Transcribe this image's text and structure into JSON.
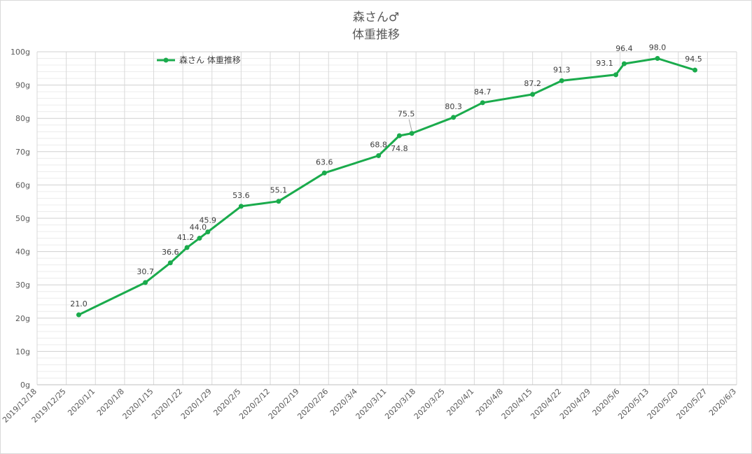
{
  "chart_data": {
    "type": "line",
    "title": "森さん♂",
    "subtitle": "体重推移",
    "color": "#1aab4c",
    "legend": {
      "label": "森さん 体重推移",
      "placement": "top-left"
    },
    "grid": true,
    "ylim": [
      0,
      100
    ],
    "y_tick_labels": [
      "0g",
      "10g",
      "20g",
      "30g",
      "40g",
      "50g",
      "60g",
      "70g",
      "80g",
      "90g",
      "100g"
    ],
    "x_tick_labels": [
      "2019/12/18",
      "2019/12/25",
      "2020/1/1",
      "2020/1/8",
      "2020/1/15",
      "2020/1/22",
      "2020/1/29",
      "2020/2/5",
      "2020/2/12",
      "2020/2/19",
      "2020/2/26",
      "2020/3/4",
      "2020/3/11",
      "2020/3/18",
      "2020/3/25",
      "2020/4/1",
      "2020/4/8",
      "2020/4/15",
      "2020/4/22",
      "2020/4/29",
      "2020/5/6",
      "2020/5/13",
      "2020/5/20",
      "2020/5/27",
      "2020/6/3"
    ],
    "xlim": [
      "2019/12/18",
      "2020/6/3"
    ],
    "series": [
      {
        "name": "森さん 体重推移",
        "points": [
          {
            "x": "2019/12/28",
            "y": 21.0,
            "label": "21.0"
          },
          {
            "x": "2020/1/13",
            "y": 30.7,
            "label": "30.7"
          },
          {
            "x": "2020/1/19",
            "y": 36.6,
            "label": "36.6"
          },
          {
            "x": "2020/1/23",
            "y": 41.2,
            "label": "41.2"
          },
          {
            "x": "2020/1/26",
            "y": 44.0,
            "label": "44.0"
          },
          {
            "x": "2020/1/28",
            "y": 45.9,
            "label": "45.9"
          },
          {
            "x": "2020/2/5",
            "y": 53.6,
            "label": "53.6"
          },
          {
            "x": "2020/2/14",
            "y": 55.1,
            "label": "55.1"
          },
          {
            "x": "2020/2/25",
            "y": 63.6,
            "label": "63.6"
          },
          {
            "x": "2020/3/9",
            "y": 68.8,
            "label": "68.8"
          },
          {
            "x": "2020/3/14",
            "y": 74.8,
            "label": "74.8"
          },
          {
            "x": "2020/3/17",
            "y": 75.5,
            "label": "75.5"
          },
          {
            "x": "2020/3/27",
            "y": 80.3,
            "label": "80.3"
          },
          {
            "x": "2020/4/3",
            "y": 84.7,
            "label": "84.7"
          },
          {
            "x": "2020/4/15",
            "y": 87.2,
            "label": "87.2"
          },
          {
            "x": "2020/4/22",
            "y": 91.3,
            "label": "91.3"
          },
          {
            "x": "2020/5/5",
            "y": 93.1,
            "label": "93.1"
          },
          {
            "x": "2020/5/7",
            "y": 96.4,
            "label": "96.4"
          },
          {
            "x": "2020/5/15",
            "y": 98.0,
            "label": "98.0"
          },
          {
            "x": "2020/5/24",
            "y": 94.5,
            "label": "94.5"
          }
        ]
      }
    ]
  }
}
